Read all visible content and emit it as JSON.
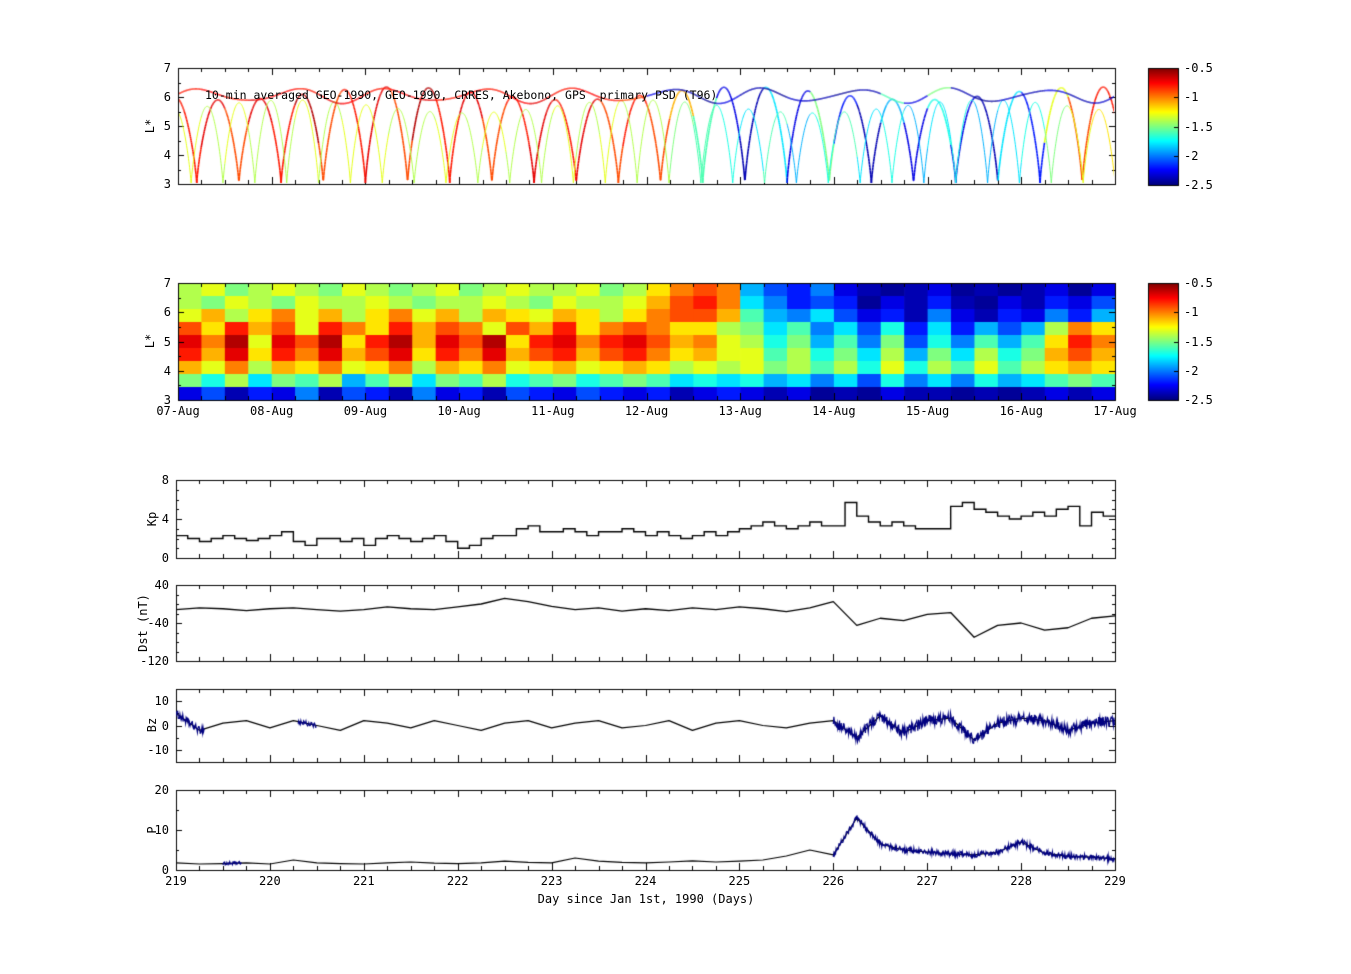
{
  "figure": {
    "background": "#ffffff",
    "xlabel": "Day since Jan 1st, 1990 (Days)",
    "line_color": "#000000",
    "highlight_color": "#000080"
  },
  "colorbar": {
    "tick_labels": [
      "-0.5",
      "-1",
      "-1.5",
      "-2",
      "-2.5"
    ],
    "vmin": -2.5,
    "vmax": -0.5,
    "colormap": "jet"
  },
  "chart_data": [
    {
      "type": "scatter",
      "name": "psd-trajectory",
      "title": "10-min averaged GEO-1990, GEO-1990, CRRES, Akebono, GPS  primary PSD (T96)",
      "ylabel": "L*",
      "ylim": [
        3,
        7
      ],
      "yticks": [
        3,
        4,
        5,
        6,
        7
      ],
      "ytick_labels": [
        "3",
        "4",
        "5",
        "6",
        "7"
      ],
      "xlim": [
        219,
        229
      ],
      "value_range": [
        -2.5,
        -0.5
      ],
      "colormap": "jet",
      "value_x_start": 219,
      "value_x_step": 0.25,
      "traces": [
        {
          "kind": "arcs",
          "name": "crres-akebono-orbit",
          "period": 0.45,
          "phase": 0.05,
          "lmin": 3.0,
          "lmax": 6.35,
          "shape": 0.75,
          "lw": 1.6,
          "values": [
            -0.8,
            -0.7,
            -0.9,
            -0.7,
            -0.8,
            -0.6,
            -0.9,
            -0.8,
            -0.7,
            -0.9,
            -0.6,
            -0.8,
            -0.7,
            -0.9,
            -0.8,
            -0.7,
            -0.8,
            -0.7,
            -0.9,
            -0.8,
            -0.9,
            -1.1,
            -1.6,
            -2.3,
            -2.4,
            -1.8,
            -2.3,
            -1.5,
            -2.2,
            -2.4,
            -1.9,
            -2.3,
            -1.7,
            -2.3,
            -2.4,
            -1.8,
            -2.2,
            -1.3,
            -0.9,
            -0.8
          ]
        },
        {
          "kind": "arcs",
          "name": "gps-orbit",
          "period": 0.34,
          "phase": 0.18,
          "lmin": 3.0,
          "lmax": 5.9,
          "shape": 0.8,
          "lw": 1.0,
          "values": [
            -1.3,
            -1.4,
            -1.3,
            -1.4,
            -1.4,
            -1.3,
            -1.4,
            -1.3,
            -1.3,
            -1.4,
            -1.4,
            -1.3,
            -1.4,
            -1.3,
            -1.4,
            -1.4,
            -1.3,
            -1.4,
            -1.3,
            -1.4,
            -1.4,
            -1.5,
            -1.6,
            -1.7,
            -1.8,
            -1.6,
            -1.9,
            -1.7,
            -1.6,
            -1.8,
            -1.7,
            -1.9,
            -1.8,
            -1.7,
            -1.9,
            -1.8,
            -1.7,
            -1.5,
            -1.3,
            -1.2
          ]
        },
        {
          "kind": "geo",
          "name": "geo-1990-orbit",
          "base": 6.05,
          "amp": 0.22,
          "lw": 1.6,
          "values": [
            -0.8,
            -0.75,
            -0.8,
            -0.7,
            -0.75,
            -0.8,
            -0.7,
            -0.75,
            -0.8,
            -0.75,
            -0.7,
            -0.8,
            -0.75,
            -0.8,
            -0.75,
            -0.7,
            -0.8,
            -0.75,
            -0.8,
            -0.9,
            -2.3,
            -2.4,
            -2.45,
            -2.3,
            -2.4,
            -2.45,
            -2.35,
            -2.4,
            -2.45,
            -2.4,
            -1.6,
            -2.3,
            -1.5,
            -2.4,
            -2.45,
            -2.35,
            -2.4,
            -2.3,
            -2.4,
            -2.35
          ]
        }
      ]
    },
    {
      "type": "heatmap",
      "name": "psd-spectrogram",
      "ylabel": "L*",
      "ylim": [
        3,
        7
      ],
      "yticks": [
        3,
        4,
        5,
        6,
        7
      ],
      "ytick_labels": [
        "3",
        "4",
        "5",
        "6",
        "7"
      ],
      "xlim": [
        219,
        229
      ],
      "xticks": [
        219,
        220,
        221,
        222,
        223,
        224,
        225,
        226,
        227,
        228,
        229
      ],
      "xtick_labels": [
        "07-Aug",
        "08-Aug",
        "09-Aug",
        "10-Aug",
        "11-Aug",
        "12-Aug",
        "13-Aug",
        "14-Aug",
        "15-Aug",
        "16-Aug",
        "17-Aug"
      ],
      "value_range": [
        -2.5,
        -0.5
      ],
      "colormap": "jet",
      "l_top": 7,
      "l_bottom": 3,
      "x_start": 219,
      "x_step": 0.25,
      "grid_rows_top_to_bottom": [
        [
          -1.4,
          -1.3,
          -1.5,
          -1.4,
          -1.3,
          -1.4,
          -1.5,
          -1.3,
          -1.4,
          -1.5,
          -1.4,
          -1.3,
          -1.5,
          -1.4,
          -1.3,
          -1.4,
          -1.4,
          -1.3,
          -1.5,
          -1.4,
          -1.2,
          -1.0,
          -0.9,
          -1.0,
          -1.9,
          -2.1,
          -2.2,
          -2.0,
          -2.3,
          -2.4,
          -2.45,
          -2.4,
          -2.3,
          -2.45,
          -2.4,
          -2.45,
          -2.4,
          -2.3,
          -2.45,
          -2.3
        ],
        [
          -1.4,
          -1.5,
          -1.3,
          -1.4,
          -1.5,
          -1.3,
          -1.4,
          -1.4,
          -1.3,
          -1.4,
          -1.5,
          -1.4,
          -1.4,
          -1.3,
          -1.4,
          -1.5,
          -1.3,
          -1.4,
          -1.4,
          -1.3,
          -1.1,
          -0.9,
          -0.8,
          -1.0,
          -1.8,
          -2.0,
          -2.2,
          -2.1,
          -2.2,
          -2.45,
          -2.3,
          -2.4,
          -2.2,
          -2.4,
          -2.45,
          -2.3,
          -2.4,
          -2.2,
          -2.3,
          -2.1
        ],
        [
          -1.3,
          -1.1,
          -1.4,
          -1.2,
          -1.0,
          -1.3,
          -1.1,
          -1.4,
          -1.2,
          -1.0,
          -1.3,
          -1.1,
          -1.4,
          -1.1,
          -1.2,
          -1.3,
          -1.1,
          -1.2,
          -1.4,
          -1.2,
          -1.0,
          -0.9,
          -0.9,
          -1.1,
          -1.6,
          -1.9,
          -2.0,
          -1.8,
          -2.1,
          -2.3,
          -2.2,
          -2.4,
          -2.0,
          -2.3,
          -2.4,
          -2.2,
          -2.3,
          -2.0,
          -2.2,
          -1.9
        ],
        [
          -0.9,
          -1.2,
          -0.8,
          -1.1,
          -0.9,
          -1.3,
          -0.8,
          -1.0,
          -1.2,
          -0.8,
          -1.1,
          -0.9,
          -1.0,
          -1.3,
          -0.9,
          -1.1,
          -0.8,
          -1.2,
          -1.0,
          -0.9,
          -1.0,
          -1.2,
          -1.2,
          -1.4,
          -1.5,
          -1.8,
          -1.6,
          -2.0,
          -1.8,
          -2.1,
          -1.7,
          -2.2,
          -1.8,
          -2.2,
          -1.9,
          -2.1,
          -1.9,
          -1.4,
          -1.0,
          -1.2
        ],
        [
          -0.7,
          -1.0,
          -0.6,
          -1.3,
          -0.7,
          -0.9,
          -0.6,
          -1.2,
          -0.8,
          -0.6,
          -1.1,
          -0.7,
          -0.9,
          -0.6,
          -1.2,
          -0.8,
          -0.7,
          -1.0,
          -0.8,
          -0.7,
          -0.9,
          -1.1,
          -1.0,
          -1.3,
          -1.4,
          -1.7,
          -1.5,
          -1.9,
          -1.6,
          -2.0,
          -1.5,
          -2.1,
          -1.7,
          -2.0,
          -1.6,
          -1.9,
          -1.6,
          -1.2,
          -0.8,
          -1.0
        ],
        [
          -0.8,
          -1.1,
          -0.7,
          -1.2,
          -0.8,
          -1.0,
          -0.7,
          -1.1,
          -0.9,
          -0.7,
          -1.2,
          -0.8,
          -1.0,
          -0.7,
          -1.1,
          -0.9,
          -0.8,
          -1.1,
          -0.9,
          -0.8,
          -1.0,
          -1.2,
          -1.1,
          -1.3,
          -1.3,
          -1.6,
          -1.4,
          -1.7,
          -1.5,
          -1.8,
          -1.4,
          -1.9,
          -1.5,
          -1.8,
          -1.4,
          -1.7,
          -1.5,
          -1.1,
          -0.9,
          -1.1
        ],
        [
          -1.1,
          -1.3,
          -1.0,
          -1.4,
          -1.1,
          -1.2,
          -1.0,
          -1.3,
          -1.2,
          -1.0,
          -1.4,
          -1.1,
          -1.2,
          -1.0,
          -1.3,
          -1.2,
          -1.1,
          -1.3,
          -1.2,
          -1.1,
          -1.2,
          -1.4,
          -1.3,
          -1.4,
          -1.3,
          -1.5,
          -1.4,
          -1.6,
          -1.4,
          -1.7,
          -1.3,
          -1.7,
          -1.4,
          -1.6,
          -1.3,
          -1.6,
          -1.4,
          -1.2,
          -1.1,
          -1.2
        ],
        [
          -1.5,
          -1.7,
          -1.4,
          -1.8,
          -1.5,
          -1.6,
          -1.4,
          -1.9,
          -1.6,
          -1.4,
          -1.8,
          -1.5,
          -1.6,
          -1.4,
          -1.7,
          -1.6,
          -1.5,
          -1.7,
          -1.6,
          -1.5,
          -1.6,
          -1.8,
          -1.7,
          -1.8,
          -1.7,
          -1.9,
          -1.8,
          -2.0,
          -1.8,
          -2.1,
          -1.7,
          -2.0,
          -1.8,
          -2.0,
          -1.7,
          -1.9,
          -1.8,
          -1.6,
          -1.5,
          -1.6
        ],
        [
          -2.3,
          -2.1,
          -2.4,
          -2.2,
          -2.3,
          -2.0,
          -2.4,
          -2.1,
          -2.2,
          -2.4,
          -2.0,
          -2.3,
          -2.2,
          -2.4,
          -2.1,
          -2.2,
          -2.3,
          -2.1,
          -2.2,
          -2.3,
          -2.2,
          -2.4,
          -2.3,
          -2.2,
          -2.3,
          -2.4,
          -2.3,
          -2.45,
          -2.4,
          -2.45,
          -2.3,
          -2.4,
          -2.4,
          -2.45,
          -2.4,
          -2.45,
          -2.4,
          -2.3,
          -2.4,
          -2.3
        ]
      ]
    },
    {
      "type": "line",
      "name": "kp-index",
      "ylabel": "Kp",
      "ylim": [
        0,
        8
      ],
      "yticks": [
        0,
        4,
        8
      ],
      "ytick_labels": [
        "0",
        "4",
        "8"
      ],
      "xlim": [
        219,
        229
      ],
      "style": "steps",
      "x_start": 219,
      "x_step": 0.125,
      "values": [
        2.3,
        2.0,
        1.7,
        2.0,
        2.3,
        2.0,
        1.8,
        2.0,
        2.3,
        2.7,
        1.7,
        1.3,
        2.0,
        2.0,
        1.7,
        2.0,
        1.3,
        2.0,
        2.3,
        2.0,
        1.7,
        2.0,
        2.3,
        1.7,
        1.0,
        1.3,
        2.0,
        2.3,
        2.3,
        3.0,
        3.3,
        2.7,
        2.7,
        3.0,
        2.7,
        2.3,
        2.7,
        2.7,
        3.0,
        2.7,
        2.3,
        2.7,
        2.3,
        2.0,
        2.3,
        2.7,
        2.3,
        2.7,
        3.0,
        3.3,
        3.7,
        3.3,
        3.0,
        3.3,
        3.7,
        3.3,
        3.3,
        5.7,
        4.3,
        3.7,
        3.3,
        3.7,
        3.3,
        3.0,
        3.0,
        3.0,
        5.3,
        5.7,
        5.0,
        4.7,
        4.3,
        4.0,
        4.3,
        4.7,
        4.3,
        5.0,
        5.3,
        3.3,
        4.7,
        4.3
      ]
    },
    {
      "type": "line",
      "name": "dst-index",
      "ylabel": "Dst (nT)",
      "ylim": [
        -120,
        40
      ],
      "yticks": [
        40,
        -40,
        -120
      ],
      "ytick_labels": [
        "40",
        "-40",
        "-120"
      ],
      "xlim": [
        219,
        229
      ],
      "x_start": 219,
      "x_step": 0.25,
      "values": [
        -12,
        -8,
        -10,
        -14,
        -10,
        -8,
        -12,
        -15,
        -12,
        -6,
        -10,
        -12,
        -6,
        0,
        12,
        5,
        -5,
        -12,
        -8,
        -15,
        -10,
        -14,
        -8,
        -12,
        -6,
        -10,
        -16,
        -8,
        5,
        -45,
        -30,
        -35,
        -22,
        -18,
        -70,
        -45,
        -40,
        -55,
        -50,
        -30,
        -25
      ]
    },
    {
      "type": "line",
      "name": "bz-imf",
      "ylabel": "Bz",
      "ylim": [
        -15,
        15
      ],
      "yticks": [
        10,
        0,
        -10
      ],
      "ytick_labels": [
        "10",
        "0",
        "-10"
      ],
      "xlim": [
        219,
        229
      ],
      "x_start": 219,
      "x_step": 0.25,
      "values": [
        5,
        -2,
        1,
        2,
        -1,
        2,
        0,
        -2,
        2,
        1,
        -1,
        2,
        0,
        -2,
        1,
        2,
        -1,
        1,
        2,
        -1,
        0,
        2,
        -2,
        1,
        2,
        0,
        -1,
        1,
        2,
        -5,
        4,
        -3,
        2,
        3,
        -6,
        1,
        3,
        2,
        -2,
        1,
        2
      ],
      "noisy_segments": [
        [
          219.0,
          219.3,
          1.5
        ],
        [
          220.3,
          220.5,
          1.0
        ],
        [
          226.0,
          229.0,
          2.2
        ]
      ]
    },
    {
      "type": "line",
      "name": "solar-wind-pressure",
      "ylabel": "P",
      "ylim": [
        0,
        20
      ],
      "yticks": [
        20,
        10,
        0
      ],
      "ytick_labels": [
        "20",
        "10",
        "0"
      ],
      "xlim": [
        219,
        229
      ],
      "xticks": [
        219,
        220,
        221,
        222,
        223,
        224,
        225,
        226,
        227,
        228,
        229
      ],
      "xtick_labels": [
        "219",
        "220",
        "221",
        "222",
        "223",
        "224",
        "225",
        "226",
        "227",
        "228",
        "229"
      ],
      "x_start": 219,
      "x_step": 0.25,
      "values": [
        1.8,
        1.5,
        1.6,
        1.8,
        1.5,
        2.5,
        1.8,
        1.6,
        1.5,
        1.8,
        2.0,
        1.7,
        1.6,
        1.8,
        2.2,
        1.9,
        1.8,
        3.0,
        2.2,
        1.9,
        1.8,
        2.0,
        2.3,
        2.0,
        2.2,
        2.5,
        3.5,
        5.0,
        3.8,
        13.0,
        6.5,
        5.0,
        4.5,
        4.0,
        3.8,
        4.5,
        7.0,
        4.2,
        3.4,
        3.2,
        2.8
      ],
      "noisy_segments": [
        [
          219.5,
          219.7,
          0.4
        ],
        [
          226.0,
          229.0,
          0.7
        ]
      ]
    }
  ]
}
